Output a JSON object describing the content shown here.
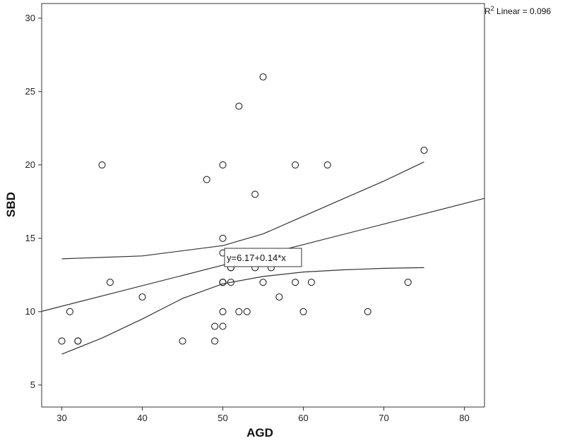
{
  "chart_data": {
    "type": "scatter",
    "xlabel": "AGD",
    "ylabel": "SBD",
    "xlim": [
      27.5,
      82.5
    ],
    "ylim": [
      3.5,
      31
    ],
    "x_ticks": [
      30,
      40,
      50,
      60,
      70,
      80
    ],
    "y_ticks": [
      5,
      10,
      15,
      20,
      25,
      30
    ],
    "grid": false,
    "points": [
      {
        "x": 30,
        "y": 8
      },
      {
        "x": 31,
        "y": 10
      },
      {
        "x": 32,
        "y": 8
      },
      {
        "x": 32,
        "y": 8
      },
      {
        "x": 35,
        "y": 20
      },
      {
        "x": 36,
        "y": 12
      },
      {
        "x": 40,
        "y": 11
      },
      {
        "x": 45,
        "y": 8
      },
      {
        "x": 48,
        "y": 19
      },
      {
        "x": 49,
        "y": 9
      },
      {
        "x": 49,
        "y": 8
      },
      {
        "x": 50,
        "y": 20
      },
      {
        "x": 50,
        "y": 15
      },
      {
        "x": 50,
        "y": 14
      },
      {
        "x": 50,
        "y": 12
      },
      {
        "x": 50,
        "y": 12
      },
      {
        "x": 50,
        "y": 12
      },
      {
        "x": 50,
        "y": 10
      },
      {
        "x": 50,
        "y": 9
      },
      {
        "x": 51,
        "y": 13
      },
      {
        "x": 51,
        "y": 13
      },
      {
        "x": 51,
        "y": 12
      },
      {
        "x": 52,
        "y": 24
      },
      {
        "x": 52,
        "y": 10
      },
      {
        "x": 53,
        "y": 10
      },
      {
        "x": 54,
        "y": 18
      },
      {
        "x": 54,
        "y": 13
      },
      {
        "x": 55,
        "y": 26
      },
      {
        "x": 55,
        "y": 12
      },
      {
        "x": 56,
        "y": 13
      },
      {
        "x": 57,
        "y": 11
      },
      {
        "x": 59,
        "y": 20
      },
      {
        "x": 59,
        "y": 12
      },
      {
        "x": 60,
        "y": 10
      },
      {
        "x": 61,
        "y": 12
      },
      {
        "x": 63,
        "y": 20
      },
      {
        "x": 68,
        "y": 10
      },
      {
        "x": 73,
        "y": 12
      },
      {
        "x": 75,
        "y": 21
      }
    ],
    "fit_line": {
      "intercept": 6.17,
      "slope": 0.14
    },
    "confidence_upper": [
      {
        "x": 30,
        "y": 13.6
      },
      {
        "x": 40,
        "y": 13.8
      },
      {
        "x": 50,
        "y": 14.5
      },
      {
        "x": 55,
        "y": 15.3
      },
      {
        "x": 60,
        "y": 16.5
      },
      {
        "x": 65,
        "y": 17.7
      },
      {
        "x": 70,
        "y": 18.9
      },
      {
        "x": 75,
        "y": 20.2
      }
    ],
    "confidence_lower": [
      {
        "x": 30,
        "y": 7.1
      },
      {
        "x": 35,
        "y": 8.2
      },
      {
        "x": 40,
        "y": 9.5
      },
      {
        "x": 45,
        "y": 10.9
      },
      {
        "x": 50,
        "y": 11.9
      },
      {
        "x": 55,
        "y": 12.4
      },
      {
        "x": 60,
        "y": 12.7
      },
      {
        "x": 65,
        "y": 12.85
      },
      {
        "x": 70,
        "y": 12.95
      },
      {
        "x": 75,
        "y": 13.0
      }
    ],
    "equation_label": "y=6.17+0.14*x",
    "r2_label": {
      "prefix": "R",
      "superscript": "2",
      "suffix": " Linear = 0.096"
    }
  }
}
